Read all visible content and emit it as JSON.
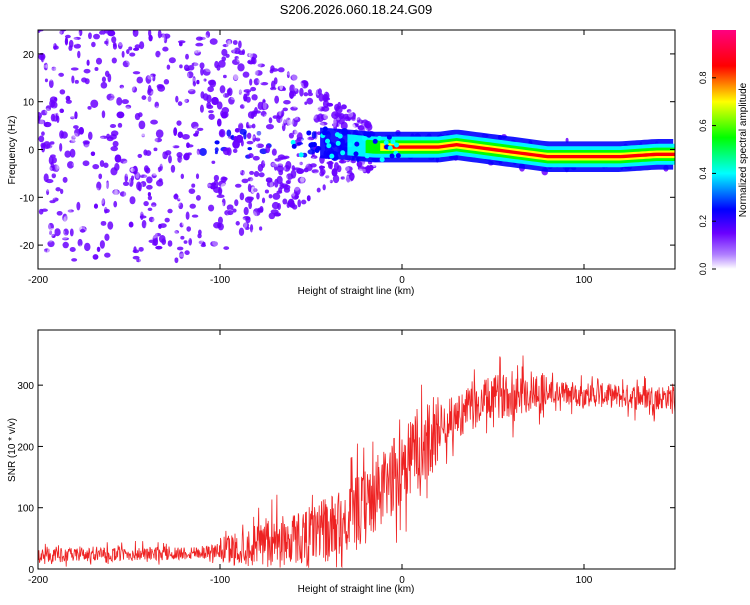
{
  "title": "S206.2026.060.18.24.G09",
  "chart_data": [
    {
      "type": "heatmap",
      "name": "spectrogram",
      "xlabel": "Height of straight line (km)",
      "ylabel": "Frequency (Hz)",
      "xlim": [
        -200,
        150
      ],
      "ylim": [
        -25,
        25
      ],
      "xticks": [
        -200,
        -100,
        0,
        100
      ],
      "xtick_labels": [
        "-200",
        "-100",
        "0",
        "100"
      ],
      "yticks": [
        -20,
        -10,
        0,
        10,
        20
      ],
      "ytick_labels": [
        "-20",
        "-10",
        "0",
        "10",
        "20"
      ],
      "colorbar": {
        "label": "Normalized spectral amplitude",
        "range": [
          0,
          1
        ],
        "ticks": [
          0.0,
          0.2,
          0.4,
          0.6,
          0.8
        ],
        "tick_labels": [
          "0.0",
          "0.2",
          "0.4",
          "0.6",
          "0.8"
        ],
        "colormap": [
          "#ffffff",
          "#6a00ff",
          "#0000ff",
          "#00ffff",
          "#00ff00",
          "#ffff00",
          "#ff0000",
          "#ff0080"
        ]
      },
      "ridge": {
        "x": [
          -80,
          -50,
          -30,
          -15,
          0,
          10,
          20,
          30,
          40,
          50,
          60,
          70,
          80,
          100,
          120,
          140,
          150
        ],
        "frequency": [
          1.5,
          1.5,
          1.0,
          0.5,
          0.5,
          0.5,
          0.5,
          1.0,
          0.5,
          0.0,
          -0.5,
          -1.0,
          -1.5,
          -1.5,
          -1.5,
          -1.0,
          -1.0
        ]
      }
    },
    {
      "type": "line",
      "name": "snr",
      "xlabel": "Height of straight line (km)",
      "ylabel": "SNR (10 * v/v)",
      "xlim": [
        -200,
        150
      ],
      "ylim": [
        0,
        390
      ],
      "xticks": [
        -200,
        -100,
        0,
        100
      ],
      "xtick_labels": [
        "-200",
        "-100",
        "0",
        "100"
      ],
      "yticks": [
        0,
        100,
        200,
        300
      ],
      "ytick_labels": [
        "0",
        "100",
        "200",
        "300"
      ],
      "color": "#ee2222",
      "trend": {
        "x": [
          -200,
          -150,
          -120,
          -100,
          -80,
          -60,
          -40,
          -30,
          -20,
          -15,
          -10,
          -5,
          0,
          5,
          10,
          15,
          20,
          30,
          40,
          50,
          60,
          70,
          80,
          100,
          120,
          150
        ],
        "snr": [
          22,
          24,
          26,
          30,
          38,
          50,
          65,
          80,
          100,
          120,
          130,
          150,
          170,
          190,
          180,
          215,
          230,
          250,
          265,
          280,
          285,
          290,
          288,
          285,
          282,
          280
        ]
      }
    }
  ]
}
